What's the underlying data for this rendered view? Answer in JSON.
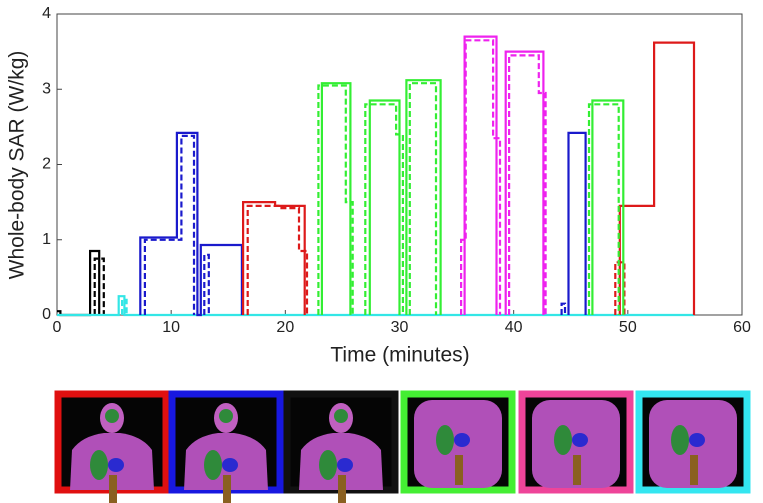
{
  "chart_data": {
    "type": "line",
    "xlabel": "Time (minutes)",
    "ylabel": "Whole-body SAR (W/kg)",
    "xlim": [
      0,
      60
    ],
    "xticks": [
      0,
      10,
      20,
      30,
      40,
      50,
      60
    ],
    "ylim": [
      0,
      4
    ],
    "yticks": [
      0,
      1,
      2,
      3,
      4
    ],
    "grid": false,
    "series": [
      {
        "color": "#000000",
        "dashed": false,
        "x": [
          0,
          0.3,
          0.3,
          2.9,
          2.9,
          3.7,
          3.7
        ],
        "values": [
          0.05,
          0.05,
          0,
          0,
          0.85,
          0.85,
          0
        ]
      },
      {
        "color": "#000000",
        "dashed": true,
        "x": [
          3.3,
          3.3,
          4.1,
          4.1
        ],
        "values": [
          0,
          0.75,
          0.75,
          0
        ]
      },
      {
        "color": "#33e6e6",
        "dashed": false,
        "x": [
          0,
          5.4,
          5.4,
          5.9,
          5.9,
          55.8
        ],
        "values": [
          0,
          0,
          0.25,
          0.25,
          0,
          0
        ]
      },
      {
        "color": "#33e6e6",
        "dashed": true,
        "x": [
          5.7,
          5.7,
          6.1,
          6.1
        ],
        "values": [
          0,
          0.2,
          0.2,
          0
        ]
      },
      {
        "color": "#1a1acc",
        "dashed": false,
        "x": [
          7.3,
          7.3,
          10.5,
          10.5,
          12.3,
          12.3,
          12.6,
          12.6,
          16.2,
          16.2,
          null,
          44.8,
          44.8,
          46.3,
          46.3
        ],
        "values": [
          0,
          1.03,
          1.03,
          2.42,
          2.42,
          0,
          0,
          0.93,
          0.93,
          0,
          null,
          0,
          2.42,
          2.42,
          0
        ]
      },
      {
        "color": "#1a1acc",
        "dashed": true,
        "x": [
          7.7,
          7.7,
          10.9,
          10.9,
          12.0,
          12.0,
          null,
          12.9,
          12.9,
          13.3,
          13.3,
          null,
          44.2,
          44.2,
          44.5,
          44.5
        ],
        "values": [
          0,
          1.0,
          1.0,
          2.38,
          2.38,
          0,
          null,
          0,
          0.8,
          0.8,
          0,
          null,
          0,
          0.15,
          0.15,
          0
        ]
      },
      {
        "color": "#dd1a1a",
        "dashed": false,
        "x": [
          16.3,
          16.3,
          19.1,
          19.1,
          21.7,
          21.7,
          null,
          49.3,
          49.3,
          52.3,
          52.3,
          55.8,
          55.8
        ],
        "values": [
          0,
          1.5,
          1.5,
          1.45,
          1.45,
          0,
          null,
          0,
          1.45,
          1.45,
          3.62,
          3.62,
          0
        ]
      },
      {
        "color": "#dd1a1a",
        "dashed": true,
        "x": [
          16.7,
          16.7,
          19.5,
          19.5,
          21.2,
          21.2,
          21.9,
          21.9,
          null,
          48.9,
          48.9,
          49.7,
          49.7
        ],
        "values": [
          0,
          1.45,
          1.45,
          1.42,
          1.42,
          0.85,
          0.85,
          0,
          null,
          0,
          0.7,
          0.7,
          0
        ]
      },
      {
        "color": "#33ee33",
        "dashed": false,
        "x": [
          23.2,
          23.2,
          25.7,
          25.7,
          null,
          27.4,
          27.4,
          30.0,
          30.0,
          null,
          30.6,
          30.6,
          33.6,
          33.6,
          null,
          46.9,
          46.9,
          49.6,
          49.6
        ],
        "values": [
          0,
          3.08,
          3.08,
          0,
          null,
          0,
          2.85,
          2.85,
          0,
          null,
          0,
          3.12,
          3.12,
          0,
          null,
          0,
          2.85,
          2.85,
          0
        ]
      },
      {
        "color": "#33ee33",
        "dashed": true,
        "x": [
          22.9,
          22.9,
          25.3,
          25.3,
          25.9,
          25.9,
          null,
          27.0,
          27.0,
          29.7,
          29.7,
          30.3,
          30.3,
          null,
          30.9,
          30.9,
          33.2,
          33.2,
          null,
          46.6,
          46.6,
          49.2,
          49.2
        ],
        "values": [
          0,
          3.05,
          3.05,
          1.5,
          1.5,
          0,
          null,
          0,
          2.8,
          2.8,
          2.4,
          2.4,
          0,
          null,
          0,
          3.08,
          3.08,
          0,
          null,
          0,
          2.8,
          2.8,
          0
        ]
      },
      {
        "color": "#ee22ee",
        "dashed": false,
        "x": [
          35.7,
          35.7,
          38.5,
          38.5,
          null,
          39.3,
          39.3,
          42.6,
          42.6
        ],
        "values": [
          0,
          3.7,
          3.7,
          0,
          null,
          0,
          3.5,
          3.5,
          0
        ]
      },
      {
        "color": "#ee22ee",
        "dashed": true,
        "x": [
          35.4,
          35.4,
          35.8,
          35.8,
          38.2,
          38.2,
          38.8,
          38.8,
          null,
          39.6,
          39.6,
          42.2,
          42.2,
          42.8,
          42.8
        ],
        "values": [
          0,
          1.0,
          1.0,
          3.65,
          3.65,
          2.35,
          2.35,
          0,
          null,
          0,
          3.45,
          3.45,
          2.95,
          2.95,
          0
        ]
      }
    ]
  }
}
